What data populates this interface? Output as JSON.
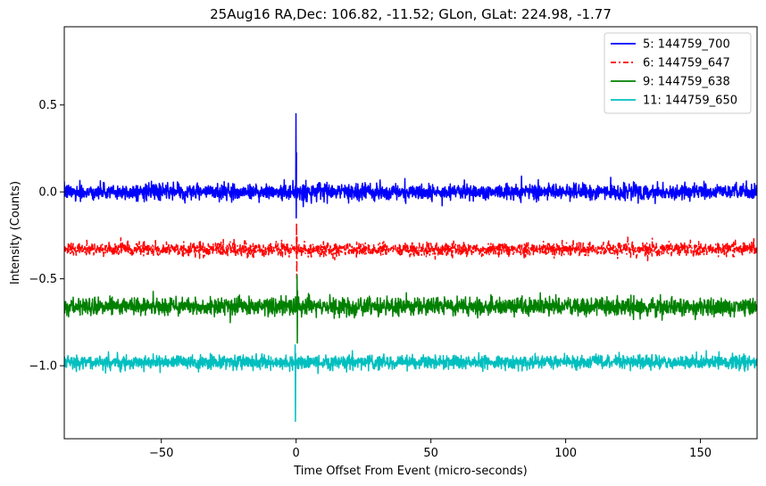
{
  "chart_data": {
    "type": "line",
    "title": "25Aug16 RA,Dec:  106.82, -11.52; GLon, GLat:  224.98,  -1.77",
    "xlabel": "Time Offset From Event (micro-seconds)",
    "ylabel": "Intensity (Counts)",
    "xlim": [
      -86,
      171
    ],
    "ylim": [
      -1.42,
      0.95
    ],
    "xticks": [
      -50,
      0,
      50,
      100,
      150
    ],
    "xtick_labels": [
      "−50",
      "0",
      "50",
      "100",
      "150"
    ],
    "yticks": [
      0.5,
      0.0,
      -0.5,
      -1.0
    ],
    "ytick_labels": [
      "0.5",
      "0.0",
      "−0.5",
      "−1.0"
    ],
    "legend_position": "top-right",
    "grid": false,
    "series": [
      {
        "name": " 5: 144759_700",
        "color": "#0000ff",
        "style": "solid",
        "baseline": 0.0,
        "noise_amplitude": 0.04,
        "event_spike": {
          "x": 0.0,
          "max": 0.45,
          "min": -0.15
        }
      },
      {
        "name": " 6: 144759_647",
        "color": "#ff0000",
        "style": "dashdot",
        "baseline": -0.33,
        "noise_amplitude": 0.035,
        "event_spike": {
          "x": 0.2,
          "max": -0.18,
          "min": -0.5
        }
      },
      {
        "name": " 9: 144759_638",
        "color": "#008000",
        "style": "solid",
        "baseline": -0.66,
        "noise_amplitude": 0.045,
        "event_spike": {
          "x": 0.4,
          "max": -0.48,
          "min": -0.87
        }
      },
      {
        "name": "11: 144759_650",
        "color": "#00bfbf",
        "style": "solid",
        "baseline": -0.98,
        "noise_amplitude": 0.035,
        "event_spike": {
          "x": -0.3,
          "max": -0.88,
          "min": -1.32
        }
      }
    ]
  }
}
